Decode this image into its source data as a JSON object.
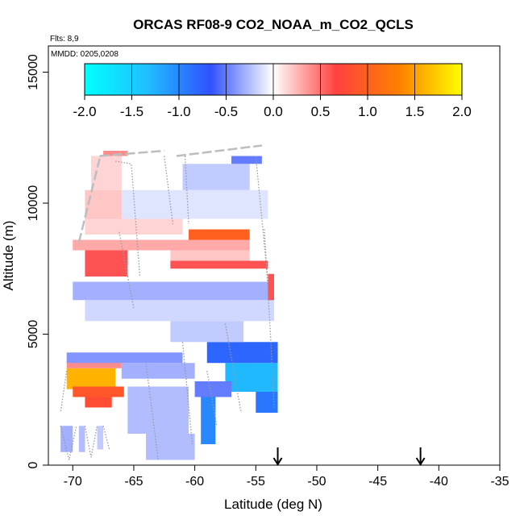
{
  "chart_data": {
    "type": "heatmap",
    "title": "ORCAS RF08-9 CO2_NOAA_m_CO2_QCLS",
    "flights_note": "Flts: 8,9",
    "date_note": "MMDD: 0205,0208",
    "xlabel": "Latitude (deg N)",
    "ylabel": "Altitude (m)",
    "xlim": [
      -72,
      -35
    ],
    "ylim": [
      0,
      16000
    ],
    "x_ticks": [
      -70,
      -65,
      -60,
      -55,
      -50,
      -45,
      -40,
      -35
    ],
    "y_ticks": [
      0,
      5000,
      10000,
      15000
    ],
    "grid": false,
    "colorbar": {
      "placement": "top-inset",
      "min": -2.0,
      "max": 2.0,
      "ticks": [
        "-2.0",
        "-1.5",
        "-1.0",
        "-0.5",
        "0.0",
        "0.5",
        "1.0",
        "1.5",
        "2.0"
      ],
      "colors": [
        "#00ffff",
        "#1fbfff",
        "#3050ff",
        "#ffffff",
        "#ff4040",
        "#ff8000",
        "#ffff00"
      ]
    },
    "arrows_latitude": [
      -53.2,
      -41.5
    ],
    "cells": [
      {
        "lat0": -70.5,
        "lat1": -66.5,
        "alt0": 2900,
        "alt1": 3700,
        "value": 1.6
      },
      {
        "lat0": -70.0,
        "lat1": -65.8,
        "alt0": 2600,
        "alt1": 3000,
        "value": 0.9
      },
      {
        "lat0": -69.0,
        "lat1": -66.8,
        "alt0": 2200,
        "alt1": 2600,
        "value": 0.8
      },
      {
        "lat0": -70.5,
        "lat1": -66.0,
        "alt0": 3700,
        "alt1": 4000,
        "value": 0.4
      },
      {
        "lat0": -70.5,
        "lat1": -61.0,
        "alt0": 3900,
        "alt1": 4300,
        "value": -0.4
      },
      {
        "lat0": -66.0,
        "lat1": -60.0,
        "alt0": 3300,
        "alt1": 3900,
        "value": -0.3
      },
      {
        "lat0": -57.5,
        "lat1": -53.2,
        "alt0": 2800,
        "alt1": 3900,
        "value": -1.3
      },
      {
        "lat0": -59.0,
        "lat1": -53.2,
        "alt0": 3900,
        "alt1": 4700,
        "value": -0.8
      },
      {
        "lat0": -55.0,
        "lat1": -53.2,
        "alt0": 2000,
        "alt1": 2800,
        "value": -0.9
      },
      {
        "lat0": -59.5,
        "lat1": -58.3,
        "alt0": 800,
        "alt1": 2600,
        "value": -1.0
      },
      {
        "lat0": -60.0,
        "lat1": -57.0,
        "alt0": 2600,
        "alt1": 3200,
        "value": -0.5
      },
      {
        "lat0": -65.5,
        "lat1": -60.5,
        "alt0": 1200,
        "alt1": 3000,
        "value": -0.25
      },
      {
        "lat0": -64.0,
        "lat1": -60.0,
        "alt0": 200,
        "alt1": 1200,
        "value": -0.25
      },
      {
        "lat0": -62.0,
        "lat1": -56.0,
        "alt0": 4700,
        "alt1": 5500,
        "value": -0.2
      },
      {
        "lat0": -69.0,
        "lat1": -53.5,
        "alt0": 5500,
        "alt1": 6300,
        "value": -0.15
      },
      {
        "lat0": -70.0,
        "lat1": -53.5,
        "alt0": 6300,
        "alt1": 7000,
        "value": -0.3
      },
      {
        "lat0": -71.0,
        "lat1": -70.0,
        "alt0": 500,
        "alt1": 1500,
        "value": -0.3
      },
      {
        "lat0": -69.5,
        "lat1": -69.0,
        "alt0": 500,
        "alt1": 1500,
        "value": -0.25
      },
      {
        "lat0": -68.0,
        "lat1": -67.5,
        "alt0": 600,
        "alt1": 1500,
        "value": -0.2
      },
      {
        "lat0": -54.0,
        "lat1": -53.5,
        "alt0": 6300,
        "alt1": 7300,
        "value": 0.6
      },
      {
        "lat0": -69.0,
        "lat1": -65.5,
        "alt0": 7200,
        "alt1": 8200,
        "value": 0.6
      },
      {
        "lat0": -62.0,
        "lat1": -54.0,
        "alt0": 7500,
        "alt1": 7800,
        "value": 0.6
      },
      {
        "lat0": -62.0,
        "lat1": -55.5,
        "alt0": 7800,
        "alt1": 8200,
        "value": 0.2
      },
      {
        "lat0": -70.0,
        "lat1": -55.5,
        "alt0": 8200,
        "alt1": 8600,
        "value": 0.3
      },
      {
        "lat0": -60.5,
        "lat1": -55.5,
        "alt0": 8600,
        "alt1": 9000,
        "value": 1.0
      },
      {
        "lat0": -69.0,
        "lat1": -61.0,
        "alt0": 8800,
        "alt1": 9400,
        "value": 0.15
      },
      {
        "lat0": -66.0,
        "lat1": -54.0,
        "alt0": 9400,
        "alt1": 10500,
        "value": -0.1
      },
      {
        "lat0": -61.0,
        "lat1": -55.5,
        "alt0": 10500,
        "alt1": 11500,
        "value": -0.2
      },
      {
        "lat0": -57.0,
        "lat1": -54.5,
        "alt0": 11500,
        "alt1": 11800,
        "value": -0.5
      },
      {
        "lat0": -68.5,
        "lat1": -66.0,
        "alt0": 10500,
        "alt1": 11800,
        "value": 0.15
      },
      {
        "lat0": -69.0,
        "lat1": -66.0,
        "alt0": 9400,
        "alt1": 10500,
        "value": 0.2
      },
      {
        "lat0": -67.5,
        "lat1": -65.5,
        "alt0": 11800,
        "alt1": 12000,
        "value": 0.4
      }
    ],
    "flight_tracks": [
      {
        "style": "solid-gray",
        "points": [
          [
            -67.8,
            11800
          ],
          [
            -62.5,
            12000
          ]
        ]
      },
      {
        "style": "solid-gray",
        "points": [
          [
            -61.5,
            11800
          ],
          [
            -54.5,
            12200
          ]
        ]
      },
      {
        "style": "solid-gray",
        "points": [
          [
            -69.5,
            8500
          ],
          [
            -67.8,
            11700
          ]
        ]
      },
      {
        "style": "dotted",
        "points": [
          [
            -66.5,
            11600
          ],
          [
            -65.2,
            11500
          ],
          [
            -64.5,
            7200
          ]
        ]
      },
      {
        "style": "dotted",
        "points": [
          [
            -62.5,
            11800
          ],
          [
            -61.8,
            9200
          ]
        ]
      },
      {
        "style": "dotted",
        "points": [
          [
            -60.8,
            11800
          ],
          [
            -60.5,
            9200
          ]
        ]
      },
      {
        "style": "dotted",
        "points": [
          [
            -55.0,
            11800
          ],
          [
            -54.0,
            7000
          ]
        ]
      },
      {
        "style": "dotted",
        "points": [
          [
            -54.3,
            9000
          ],
          [
            -53.8,
            5000
          ],
          [
            -53.5,
            2200
          ]
        ]
      },
      {
        "style": "dotted",
        "points": [
          [
            -66.2,
            8900
          ],
          [
            -65.0,
            6000
          ]
        ]
      },
      {
        "style": "dotted",
        "points": [
          [
            -61.0,
            4700
          ],
          [
            -60.2,
            800
          ]
        ]
      },
      {
        "style": "dotted",
        "points": [
          [
            -57.5,
            5400
          ],
          [
            -56.2,
            2000
          ]
        ]
      },
      {
        "style": "dotted",
        "points": [
          [
            -59.0,
            3600
          ],
          [
            -58.2,
            1500
          ]
        ]
      },
      {
        "style": "dotted",
        "points": [
          [
            -64.0,
            3900
          ],
          [
            -63.0,
            200
          ]
        ]
      },
      {
        "style": "dotted",
        "points": [
          [
            -70.5,
            3600
          ],
          [
            -71.0,
            2000
          ]
        ]
      },
      {
        "style": "dotted",
        "points": [
          [
            -71.0,
            1500
          ],
          [
            -70.3,
            200
          ],
          [
            -69.7,
            1500
          ]
        ]
      },
      {
        "style": "dotted",
        "points": [
          [
            -69.0,
            1500
          ],
          [
            -68.5,
            300
          ],
          [
            -68.0,
            1500
          ]
        ]
      },
      {
        "style": "dotted",
        "points": [
          [
            -67.5,
            1500
          ],
          [
            -67.0,
            600
          ]
        ]
      }
    ]
  }
}
